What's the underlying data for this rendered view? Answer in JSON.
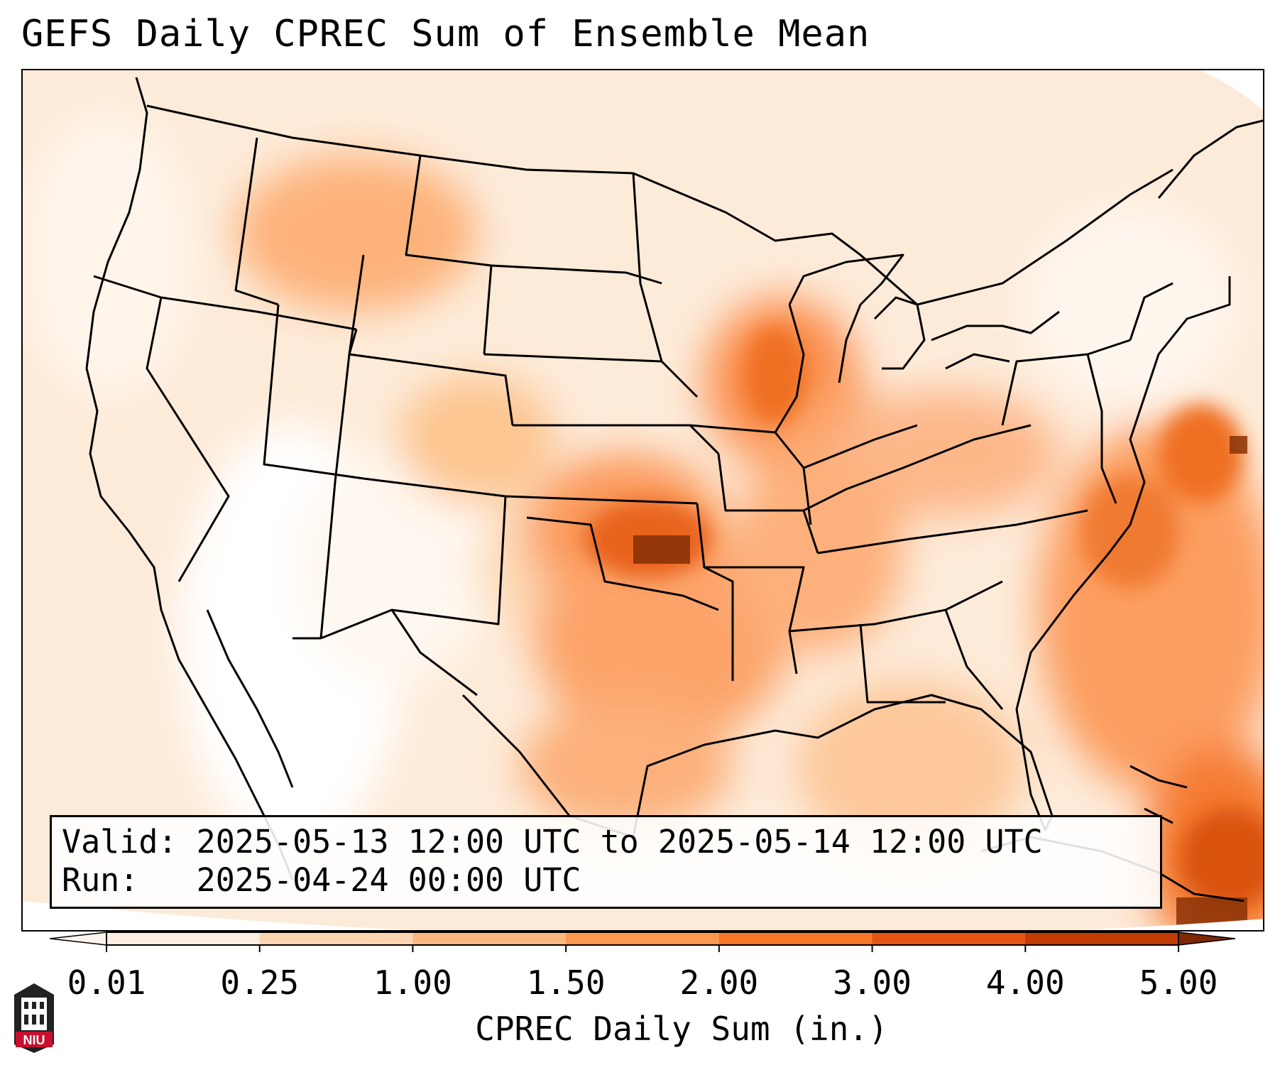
{
  "title": "GEFS Daily CPREC Sum of Ensemble Mean",
  "info": {
    "valid_label": "Valid:",
    "valid_value": "2025-05-13 12:00 UTC to 2025-05-14 12:00 UTC",
    "run_label": "Run:",
    "run_value": "2025-04-24 00:00 UTC"
  },
  "colorbar": {
    "label": "CPREC Daily Sum (in.)",
    "ticks": [
      "0.01",
      "0.25",
      "1.00",
      "1.50",
      "2.00",
      "3.00",
      "4.00",
      "5.00"
    ],
    "colors": [
      "#fdeedf",
      "#fdd5b0",
      "#fdb87f",
      "#fd9850",
      "#f87628",
      "#e55511",
      "#c33c04"
    ],
    "under_color": "#fff5eb",
    "over_color": "#7f2704"
  },
  "logo": {
    "text": "NIU",
    "colors": {
      "red": "#c8102e",
      "dark": "#222222"
    }
  }
}
